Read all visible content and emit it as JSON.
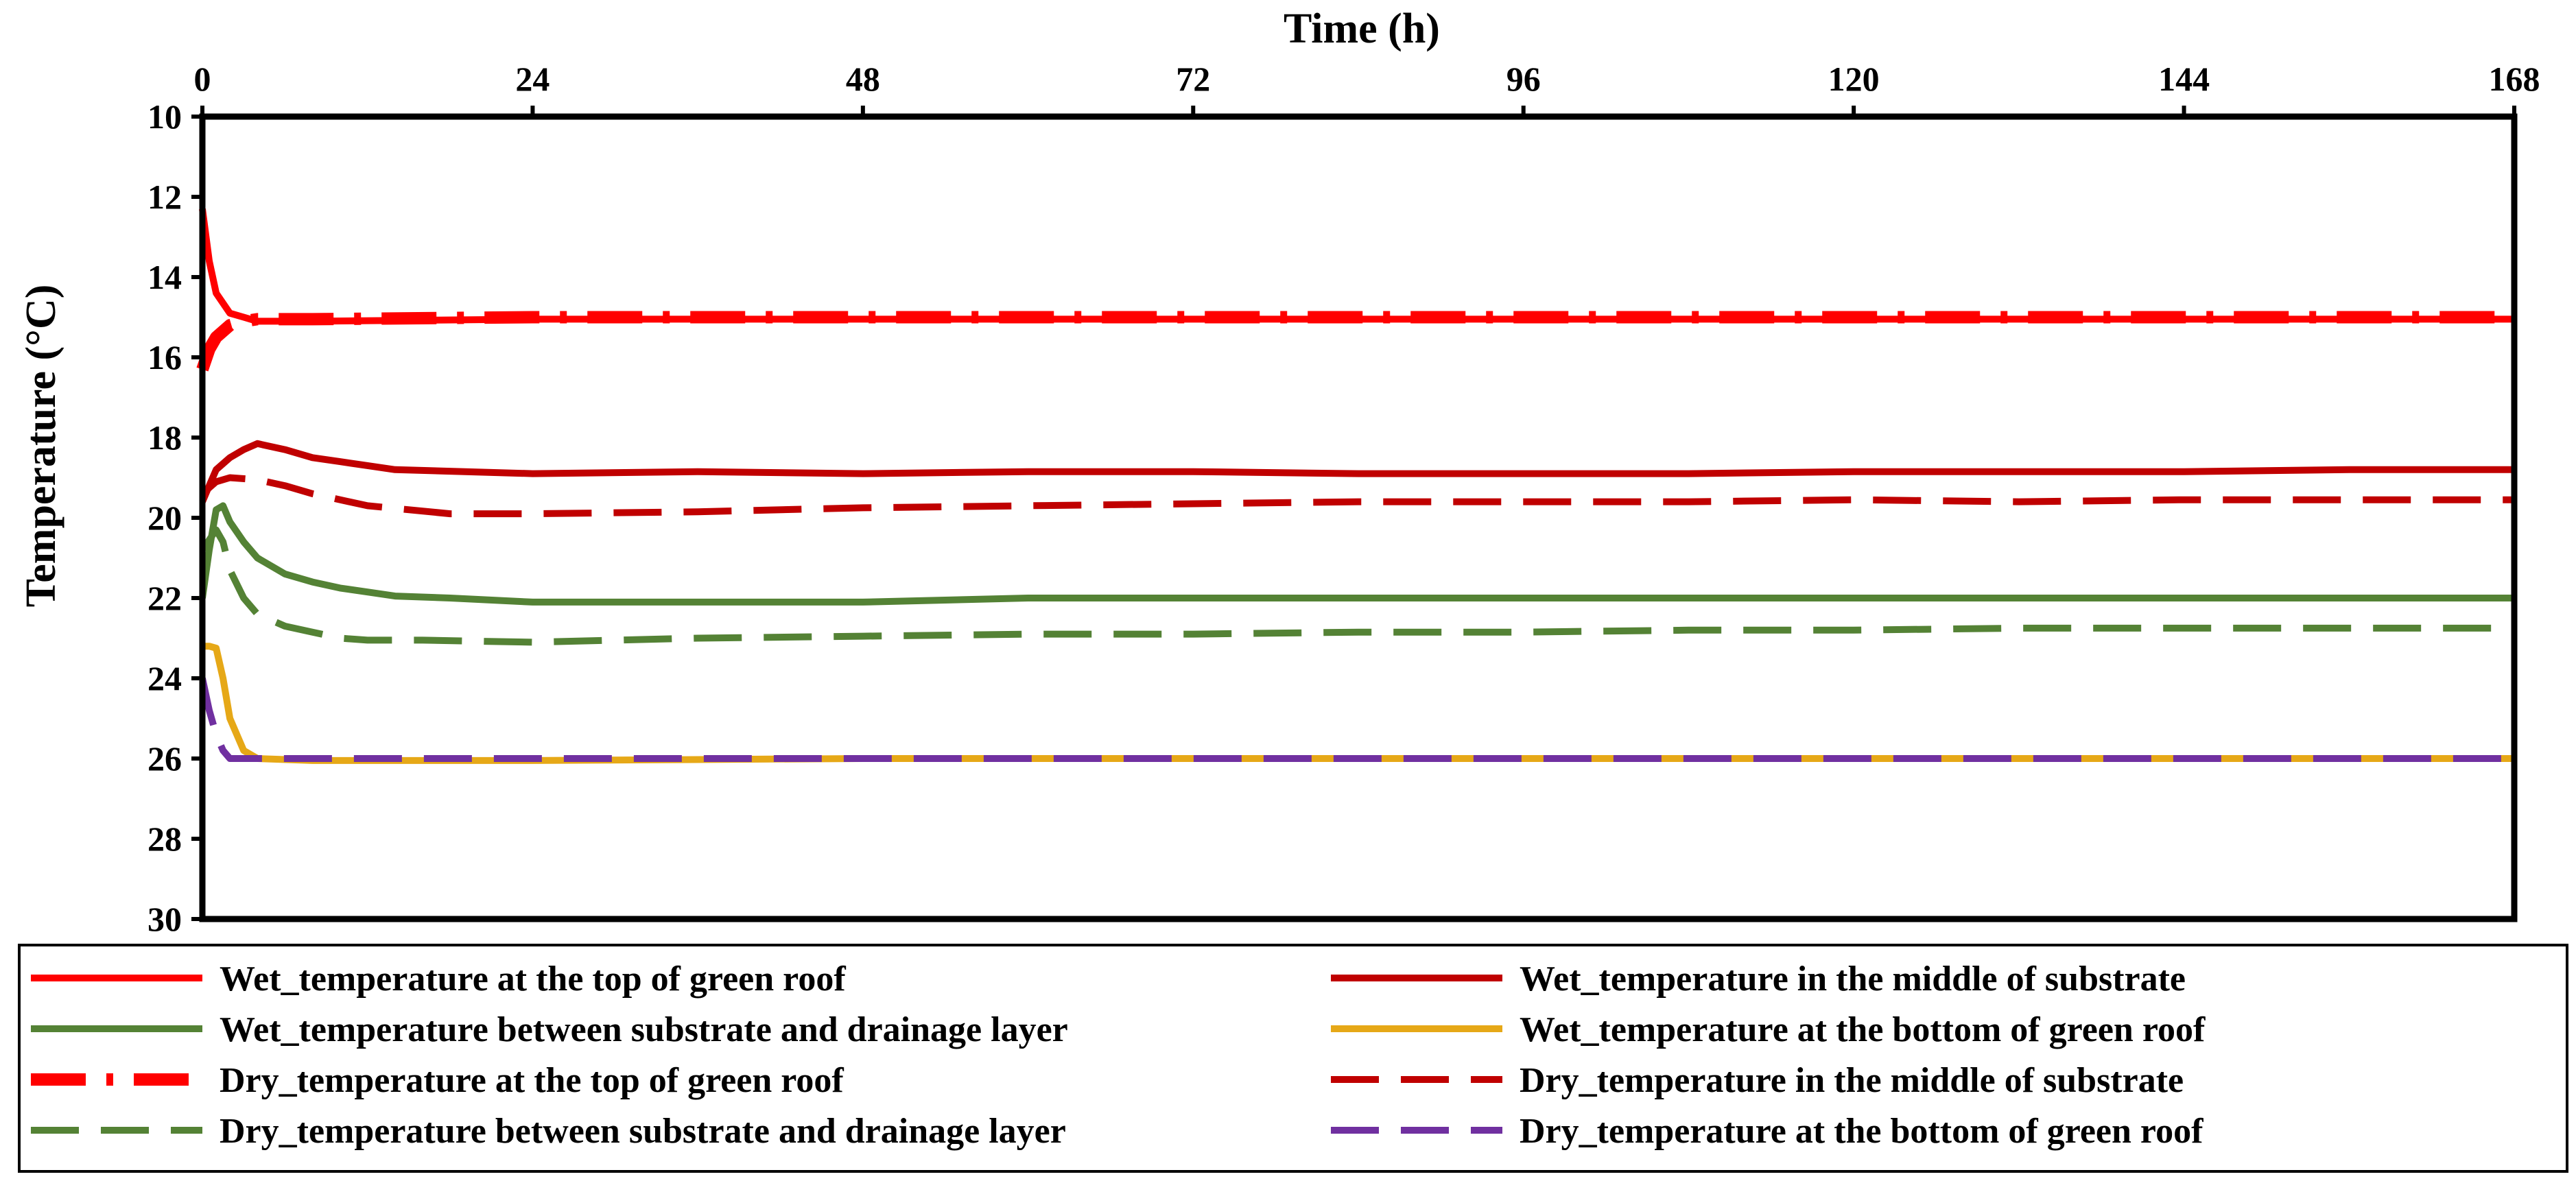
{
  "chart_data": {
    "type": "line",
    "title": "",
    "xlabel": "Time (h)",
    "ylabel": "Temperature (°C)",
    "xlim": [
      0,
      168
    ],
    "ylim": [
      10,
      30
    ],
    "y_inverted": true,
    "x_axis_position": "top",
    "grid": false,
    "x_ticks": [
      0,
      24,
      48,
      72,
      96,
      120,
      144,
      168
    ],
    "y_ticks": [
      10,
      12,
      14,
      16,
      18,
      20,
      22,
      24,
      26,
      28,
      30
    ],
    "legend_position": "bottom",
    "series": [
      {
        "name": "Wet_temperature at the top of green roof",
        "color": "#ff0000",
        "style": "solid",
        "points": [
          [
            0,
            12.3
          ],
          [
            0.5,
            13.6
          ],
          [
            1,
            14.4
          ],
          [
            2,
            14.9
          ],
          [
            3,
            15.0
          ],
          [
            4,
            15.1
          ],
          [
            8,
            15.1
          ],
          [
            24,
            15.05
          ],
          [
            48,
            15.05
          ],
          [
            72,
            15.05
          ],
          [
            96,
            15.05
          ],
          [
            120,
            15.05
          ],
          [
            144,
            15.05
          ],
          [
            168,
            15.05
          ]
        ]
      },
      {
        "name": "Wet_temperature in the middle of substrate",
        "color": "#c00000",
        "style": "solid",
        "points": [
          [
            0,
            19.6
          ],
          [
            0.5,
            19.2
          ],
          [
            1,
            18.8
          ],
          [
            2,
            18.5
          ],
          [
            3,
            18.3
          ],
          [
            4,
            18.15
          ],
          [
            6,
            18.3
          ],
          [
            8,
            18.5
          ],
          [
            10,
            18.6
          ],
          [
            12,
            18.7
          ],
          [
            14,
            18.8
          ],
          [
            24,
            18.9
          ],
          [
            36,
            18.85
          ],
          [
            48,
            18.9
          ],
          [
            60,
            18.85
          ],
          [
            72,
            18.85
          ],
          [
            84,
            18.9
          ],
          [
            96,
            18.9
          ],
          [
            108,
            18.9
          ],
          [
            120,
            18.85
          ],
          [
            132,
            18.85
          ],
          [
            144,
            18.85
          ],
          [
            156,
            18.8
          ],
          [
            168,
            18.8
          ]
        ]
      },
      {
        "name": "Wet_temperature between substrate and drainage layer",
        "color": "#548235",
        "style": "solid",
        "points": [
          [
            0,
            22.0
          ],
          [
            0.5,
            20.8
          ],
          [
            1,
            19.8
          ],
          [
            1.5,
            19.7
          ],
          [
            2,
            20.1
          ],
          [
            3,
            20.6
          ],
          [
            4,
            21.0
          ],
          [
            6,
            21.4
          ],
          [
            8,
            21.6
          ],
          [
            10,
            21.75
          ],
          [
            12,
            21.85
          ],
          [
            14,
            21.95
          ],
          [
            18,
            22.0
          ],
          [
            24,
            22.1
          ],
          [
            36,
            22.1
          ],
          [
            48,
            22.1
          ],
          [
            60,
            22.0
          ],
          [
            72,
            22.0
          ],
          [
            84,
            22.0
          ],
          [
            96,
            22.0
          ],
          [
            108,
            22.0
          ],
          [
            120,
            22.0
          ],
          [
            144,
            22.0
          ],
          [
            168,
            22.0
          ]
        ]
      },
      {
        "name": "Wet_temperature at the bottom of green roof",
        "color": "#e6a817",
        "style": "solid",
        "points": [
          [
            0,
            23.2
          ],
          [
            0.5,
            23.2
          ],
          [
            1,
            23.25
          ],
          [
            1.5,
            24.0
          ],
          [
            2,
            25.0
          ],
          [
            3,
            25.8
          ],
          [
            4,
            26.0
          ],
          [
            8,
            26.05
          ],
          [
            24,
            26.05
          ],
          [
            48,
            26.0
          ],
          [
            72,
            26.0
          ],
          [
            96,
            26.0
          ],
          [
            120,
            26.0
          ],
          [
            144,
            26.0
          ],
          [
            168,
            26.0
          ]
        ]
      },
      {
        "name": "Dry_temperature at the top of green roof",
        "color": "#ff0000",
        "style": "dashdot",
        "points": [
          [
            0,
            16.3
          ],
          [
            0.5,
            15.8
          ],
          [
            1,
            15.5
          ],
          [
            2,
            15.2
          ],
          [
            3,
            15.1
          ],
          [
            4,
            15.05
          ],
          [
            8,
            15.05
          ],
          [
            24,
            15.0
          ],
          [
            48,
            15.0
          ],
          [
            72,
            15.0
          ],
          [
            96,
            15.0
          ],
          [
            120,
            15.0
          ],
          [
            144,
            15.0
          ],
          [
            168,
            15.0
          ]
        ]
      },
      {
        "name": "Dry_temperature in the middle of substrate",
        "color": "#c00000",
        "style": "dash",
        "points": [
          [
            0,
            19.4
          ],
          [
            1,
            19.1
          ],
          [
            2,
            19.0
          ],
          [
            4,
            19.05
          ],
          [
            6,
            19.2
          ],
          [
            8,
            19.4
          ],
          [
            12,
            19.7
          ],
          [
            18,
            19.9
          ],
          [
            24,
            19.9
          ],
          [
            36,
            19.85
          ],
          [
            48,
            19.75
          ],
          [
            60,
            19.7
          ],
          [
            72,
            19.65
          ],
          [
            84,
            19.6
          ],
          [
            96,
            19.6
          ],
          [
            108,
            19.6
          ],
          [
            120,
            19.55
          ],
          [
            132,
            19.6
          ],
          [
            144,
            19.55
          ],
          [
            156,
            19.55
          ],
          [
            168,
            19.55
          ]
        ]
      },
      {
        "name": "Dry_temperature between substrate and drainage layer",
        "color": "#548235",
        "style": "dash",
        "points": [
          [
            0,
            20.8
          ],
          [
            1,
            20.3
          ],
          [
            1.5,
            20.6
          ],
          [
            2,
            21.3
          ],
          [
            3,
            22.0
          ],
          [
            4,
            22.4
          ],
          [
            6,
            22.7
          ],
          [
            8,
            22.85
          ],
          [
            10,
            23.0
          ],
          [
            12,
            23.05
          ],
          [
            16,
            23.05
          ],
          [
            24,
            23.1
          ],
          [
            36,
            23.0
          ],
          [
            48,
            22.95
          ],
          [
            60,
            22.9
          ],
          [
            72,
            22.9
          ],
          [
            84,
            22.85
          ],
          [
            96,
            22.85
          ],
          [
            108,
            22.8
          ],
          [
            120,
            22.8
          ],
          [
            132,
            22.75
          ],
          [
            144,
            22.75
          ],
          [
            168,
            22.75
          ]
        ]
      },
      {
        "name": "Dry_temperature at the bottom of green roof",
        "color": "#7030a0",
        "style": "dash",
        "points": [
          [
            0,
            24.0
          ],
          [
            0.5,
            24.8
          ],
          [
            1,
            25.4
          ],
          [
            1.5,
            25.8
          ],
          [
            2,
            26.0
          ],
          [
            4,
            26.0
          ],
          [
            24,
            26.0
          ],
          [
            48,
            26.0
          ],
          [
            72,
            26.0
          ],
          [
            96,
            26.0
          ],
          [
            120,
            26.0
          ],
          [
            144,
            26.0
          ],
          [
            168,
            26.0
          ]
        ]
      }
    ]
  }
}
